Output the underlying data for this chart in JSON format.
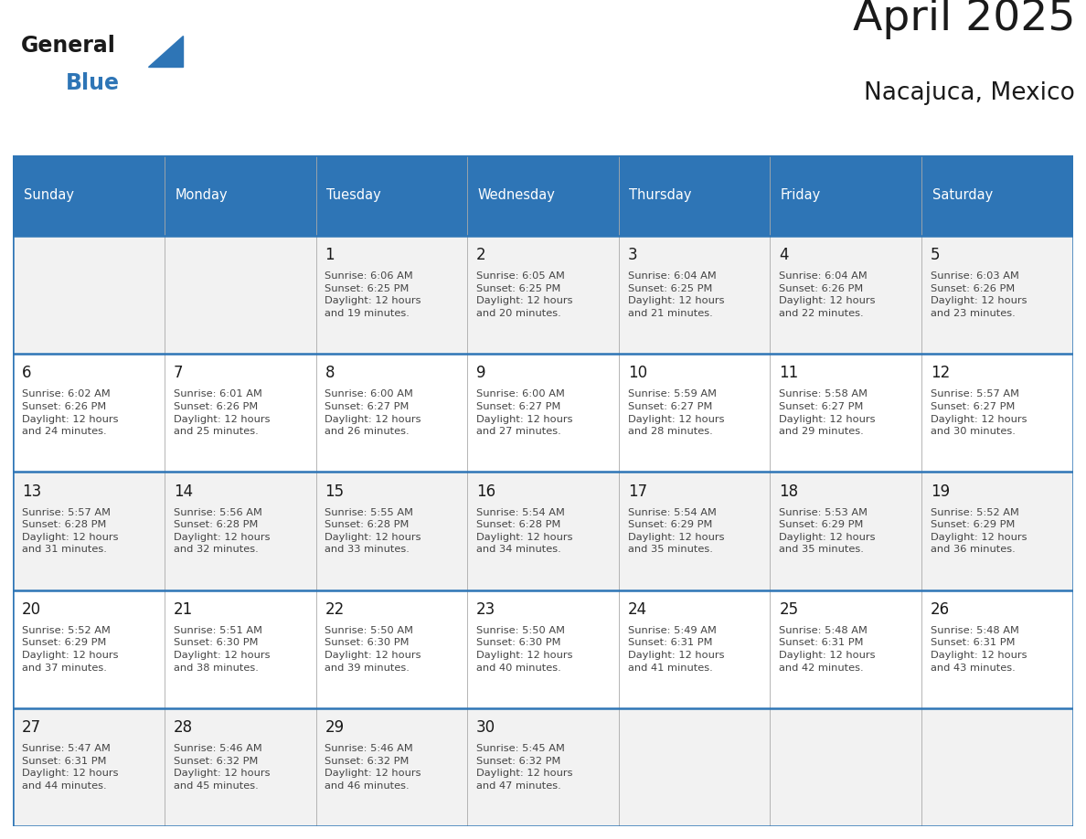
{
  "title": "April 2025",
  "subtitle": "Nacajuca, Mexico",
  "header_bg": "#2E75B6",
  "header_text_color": "#FFFFFF",
  "day_names": [
    "Sunday",
    "Monday",
    "Tuesday",
    "Wednesday",
    "Thursday",
    "Friday",
    "Saturday"
  ],
  "cell_bg_light": "#F2F2F2",
  "cell_bg_white": "#FFFFFF",
  "cell_border_color": "#2E75B6",
  "cell_divider_color": "#AAAAAA",
  "date_color": "#1a1a1a",
  "text_color": "#444444",
  "title_color": "#1a1a1a",
  "logo_general_color": "#1a1a1a",
  "logo_blue_color": "#2E75B6",
  "logo_triangle_color": "#2E75B6",
  "calendar": [
    [
      null,
      null,
      {
        "day": 1,
        "sunrise": "6:06 AM",
        "sunset": "6:25 PM",
        "daylight": "12 hours\nand 19 minutes."
      },
      {
        "day": 2,
        "sunrise": "6:05 AM",
        "sunset": "6:25 PM",
        "daylight": "12 hours\nand 20 minutes."
      },
      {
        "day": 3,
        "sunrise": "6:04 AM",
        "sunset": "6:25 PM",
        "daylight": "12 hours\nand 21 minutes."
      },
      {
        "day": 4,
        "sunrise": "6:04 AM",
        "sunset": "6:26 PM",
        "daylight": "12 hours\nand 22 minutes."
      },
      {
        "day": 5,
        "sunrise": "6:03 AM",
        "sunset": "6:26 PM",
        "daylight": "12 hours\nand 23 minutes."
      }
    ],
    [
      {
        "day": 6,
        "sunrise": "6:02 AM",
        "sunset": "6:26 PM",
        "daylight": "12 hours\nand 24 minutes."
      },
      {
        "day": 7,
        "sunrise": "6:01 AM",
        "sunset": "6:26 PM",
        "daylight": "12 hours\nand 25 minutes."
      },
      {
        "day": 8,
        "sunrise": "6:00 AM",
        "sunset": "6:27 PM",
        "daylight": "12 hours\nand 26 minutes."
      },
      {
        "day": 9,
        "sunrise": "6:00 AM",
        "sunset": "6:27 PM",
        "daylight": "12 hours\nand 27 minutes."
      },
      {
        "day": 10,
        "sunrise": "5:59 AM",
        "sunset": "6:27 PM",
        "daylight": "12 hours\nand 28 minutes."
      },
      {
        "day": 11,
        "sunrise": "5:58 AM",
        "sunset": "6:27 PM",
        "daylight": "12 hours\nand 29 minutes."
      },
      {
        "day": 12,
        "sunrise": "5:57 AM",
        "sunset": "6:27 PM",
        "daylight": "12 hours\nand 30 minutes."
      }
    ],
    [
      {
        "day": 13,
        "sunrise": "5:57 AM",
        "sunset": "6:28 PM",
        "daylight": "12 hours\nand 31 minutes."
      },
      {
        "day": 14,
        "sunrise": "5:56 AM",
        "sunset": "6:28 PM",
        "daylight": "12 hours\nand 32 minutes."
      },
      {
        "day": 15,
        "sunrise": "5:55 AM",
        "sunset": "6:28 PM",
        "daylight": "12 hours\nand 33 minutes."
      },
      {
        "day": 16,
        "sunrise": "5:54 AM",
        "sunset": "6:28 PM",
        "daylight": "12 hours\nand 34 minutes."
      },
      {
        "day": 17,
        "sunrise": "5:54 AM",
        "sunset": "6:29 PM",
        "daylight": "12 hours\nand 35 minutes."
      },
      {
        "day": 18,
        "sunrise": "5:53 AM",
        "sunset": "6:29 PM",
        "daylight": "12 hours\nand 35 minutes."
      },
      {
        "day": 19,
        "sunrise": "5:52 AM",
        "sunset": "6:29 PM",
        "daylight": "12 hours\nand 36 minutes."
      }
    ],
    [
      {
        "day": 20,
        "sunrise": "5:52 AM",
        "sunset": "6:29 PM",
        "daylight": "12 hours\nand 37 minutes."
      },
      {
        "day": 21,
        "sunrise": "5:51 AM",
        "sunset": "6:30 PM",
        "daylight": "12 hours\nand 38 minutes."
      },
      {
        "day": 22,
        "sunrise": "5:50 AM",
        "sunset": "6:30 PM",
        "daylight": "12 hours\nand 39 minutes."
      },
      {
        "day": 23,
        "sunrise": "5:50 AM",
        "sunset": "6:30 PM",
        "daylight": "12 hours\nand 40 minutes."
      },
      {
        "day": 24,
        "sunrise": "5:49 AM",
        "sunset": "6:31 PM",
        "daylight": "12 hours\nand 41 minutes."
      },
      {
        "day": 25,
        "sunrise": "5:48 AM",
        "sunset": "6:31 PM",
        "daylight": "12 hours\nand 42 minutes."
      },
      {
        "day": 26,
        "sunrise": "5:48 AM",
        "sunset": "6:31 PM",
        "daylight": "12 hours\nand 43 minutes."
      }
    ],
    [
      {
        "day": 27,
        "sunrise": "5:47 AM",
        "sunset": "6:31 PM",
        "daylight": "12 hours\nand 44 minutes."
      },
      {
        "day": 28,
        "sunrise": "5:46 AM",
        "sunset": "6:32 PM",
        "daylight": "12 hours\nand 45 minutes."
      },
      {
        "day": 29,
        "sunrise": "5:46 AM",
        "sunset": "6:32 PM",
        "daylight": "12 hours\nand 46 minutes."
      },
      {
        "day": 30,
        "sunrise": "5:45 AM",
        "sunset": "6:32 PM",
        "daylight": "12 hours\nand 47 minutes."
      },
      null,
      null,
      null
    ]
  ]
}
